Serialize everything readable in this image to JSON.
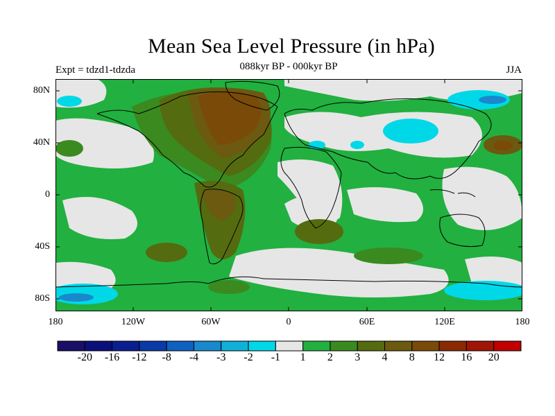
{
  "header": {
    "title": "Mean Sea Level Pressure (in hPa)",
    "subtitle": "088kyr BP - 000kyr BP",
    "experiment": "Expt = tdzd1-tdzda",
    "season": "JJA"
  },
  "axes": {
    "lat_labels": [
      "80N",
      "40N",
      "0",
      "40S",
      "80S"
    ],
    "lon_labels": [
      "180",
      "120W",
      "60W",
      "0",
      "60E",
      "120E",
      "180"
    ]
  },
  "colorbar": {
    "colors": [
      "#1a0f66",
      "#0a0f7a",
      "#0a1f8f",
      "#0a3aa8",
      "#1060c0",
      "#1a88cc",
      "#10b0d8",
      "#00d8e8",
      "#e6e6e6",
      "#22b040",
      "#3a8a20",
      "#556b10",
      "#6b5a10",
      "#7a4a08",
      "#8a2a05",
      "#a01505",
      "#c00000"
    ],
    "labels": [
      "-20",
      "-16",
      "-12",
      "-8",
      "-4",
      "-3",
      "-2",
      "-1",
      "1",
      "2",
      "3",
      "4",
      "8",
      "12",
      "16",
      "20"
    ]
  },
  "map_colors": {
    "neg_weak": "#e6e6e6",
    "neg_mod": "#00d8e8",
    "neg_strong": "#1a88cc",
    "pos_1": "#22b040",
    "pos_2": "#3a8a20",
    "pos_3": "#556b10",
    "pos_4": "#6b5a10",
    "pos_5": "#7a4a08",
    "land_line": "#000000"
  }
}
